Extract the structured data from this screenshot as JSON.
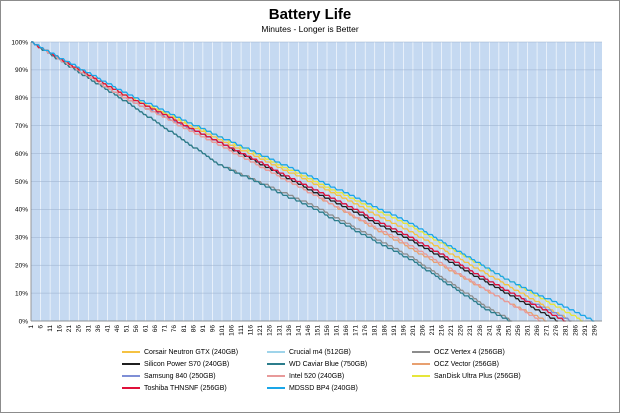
{
  "chart_data": {
    "type": "line",
    "title": "Battery Life",
    "subtitle": "Minutes - Longer is Better",
    "xlabel": "",
    "ylabel": "",
    "xlim": [
      1,
      300
    ],
    "ylim": [
      0,
      100
    ],
    "x_tick_labels": [
      "1",
      "6",
      "11",
      "16",
      "21",
      "26",
      "31",
      "36",
      "41",
      "46",
      "51",
      "56",
      "61",
      "66",
      "71",
      "76",
      "81",
      "86",
      "91",
      "96",
      "101",
      "106",
      "111",
      "116",
      "121",
      "126",
      "131",
      "136",
      "141",
      "146",
      "151",
      "156",
      "161",
      "166",
      "171",
      "176",
      "181",
      "186",
      "191",
      "196",
      "201",
      "206",
      "211",
      "216",
      "221",
      "226",
      "231",
      "236",
      "241",
      "246",
      "251",
      "256",
      "261",
      "266",
      "271",
      "276",
      "281",
      "286",
      "291",
      "296"
    ],
    "y_tick_labels": [
      "0%",
      "10%",
      "20%",
      "30%",
      "40%",
      "50%",
      "60%",
      "70%",
      "80%",
      "90%",
      "100%"
    ],
    "y_ticks": [
      0,
      10,
      20,
      30,
      40,
      50,
      60,
      70,
      80,
      90,
      100
    ],
    "grid": true,
    "legend_position": "bottom",
    "series": [
      {
        "name": "Corsair Neutron GTX (240GB)",
        "color": "#f5c242",
        "points": [
          [
            1,
            100
          ],
          [
            50,
            81
          ],
          [
            100,
            65
          ],
          [
            150,
            49
          ],
          [
            200,
            32
          ],
          [
            250,
            13
          ],
          [
            284,
            0
          ]
        ]
      },
      {
        "name": "Crucial m4 (512GB)",
        "color": "#9fd4ea",
        "points": [
          [
            1,
            100
          ],
          [
            50,
            81
          ],
          [
            100,
            64
          ],
          [
            150,
            47
          ],
          [
            200,
            30
          ],
          [
            250,
            11
          ],
          [
            280,
            0
          ]
        ]
      },
      {
        "name": "OCZ Vertex 4 (256GB)",
        "color": "#8c8c8c",
        "points": [
          [
            1,
            100
          ],
          [
            50,
            79
          ],
          [
            100,
            56
          ],
          [
            150,
            41
          ],
          [
            200,
            23
          ],
          [
            240,
            5
          ],
          [
            253,
            0
          ]
        ]
      },
      {
        "name": "Silicon Power S70 (240GB)",
        "color": "#1f1f1f",
        "points": [
          [
            1,
            100
          ],
          [
            50,
            80
          ],
          [
            100,
            64
          ],
          [
            150,
            46
          ],
          [
            200,
            29
          ],
          [
            250,
            10
          ],
          [
            277,
            0
          ]
        ]
      },
      {
        "name": "WD Caviar Blue (750GB)",
        "color": "#2c7d8c",
        "points": [
          [
            1,
            100
          ],
          [
            50,
            79
          ],
          [
            100,
            56
          ],
          [
            150,
            40
          ],
          [
            200,
            22
          ],
          [
            240,
            4
          ],
          [
            252,
            0
          ]
        ]
      },
      {
        "name": "OCZ Vector (256GB)",
        "color": "#e8a070",
        "points": [
          [
            1,
            100
          ],
          [
            50,
            80
          ],
          [
            100,
            63
          ],
          [
            150,
            45
          ],
          [
            200,
            26
          ],
          [
            250,
            7
          ],
          [
            271,
            0
          ]
        ]
      },
      {
        "name": "Samsung 840 (250GB)",
        "color": "#7f8fd6",
        "points": [
          [
            1,
            100
          ],
          [
            50,
            80
          ],
          [
            100,
            64
          ],
          [
            150,
            47
          ],
          [
            200,
            30
          ],
          [
            250,
            11
          ],
          [
            284,
            0
          ]
        ]
      },
      {
        "name": "Intel 520 (240GB)",
        "color": "#e89a9a",
        "points": [
          [
            1,
            100
          ],
          [
            50,
            80
          ],
          [
            100,
            63
          ],
          [
            150,
            45
          ],
          [
            200,
            27
          ],
          [
            250,
            7
          ],
          [
            268,
            0
          ]
        ]
      },
      {
        "name": "SanDisk Ultra Plus (256GB)",
        "color": "#e6e63a",
        "points": [
          [
            1,
            100
          ],
          [
            50,
            81
          ],
          [
            100,
            66
          ],
          [
            150,
            50
          ],
          [
            200,
            34
          ],
          [
            250,
            15
          ],
          [
            290,
            0
          ]
        ]
      },
      {
        "name": "Toshiba THNSNF (256GB)",
        "color": "#e0103a",
        "points": [
          [
            1,
            100
          ],
          [
            50,
            81
          ],
          [
            100,
            64
          ],
          [
            150,
            47
          ],
          [
            200,
            30
          ],
          [
            250,
            11
          ],
          [
            281,
            0
          ]
        ]
      },
      {
        "name": "MDSSD BP4 (240GB)",
        "color": "#1aa6e8",
        "points": [
          [
            1,
            100
          ],
          [
            50,
            82
          ],
          [
            100,
            66
          ],
          [
            150,
            51
          ],
          [
            200,
            35
          ],
          [
            250,
            15
          ],
          [
            296,
            0
          ]
        ]
      }
    ]
  },
  "colors": {
    "plot_background": "#c5d9f1",
    "grid_line": "#ffffff",
    "axis_line": "#808080"
  }
}
